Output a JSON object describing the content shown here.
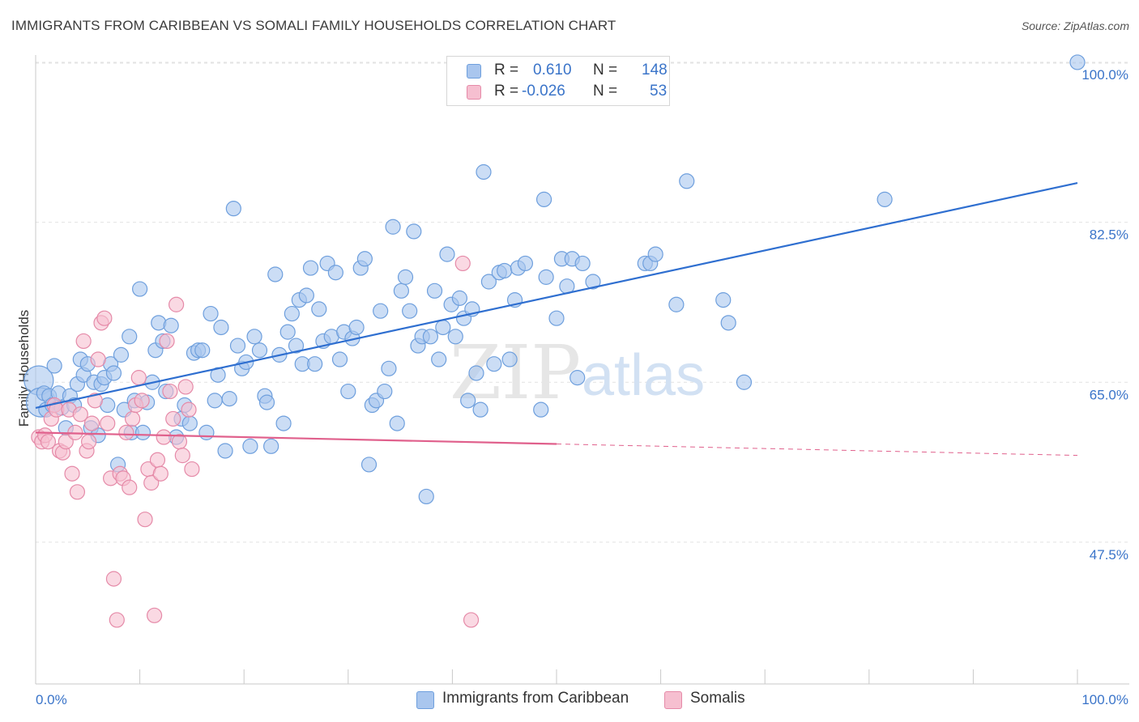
{
  "header": {
    "title": "IMMIGRANTS FROM CARIBBEAN VS SOMALI FAMILY HOUSEHOLDS CORRELATION CHART",
    "source": "Source: ZipAtlas.com"
  },
  "legend": {
    "rows": [
      {
        "r_label": "R =",
        "r_value": "0.610",
        "n_label": "N =",
        "n_value": "148"
      },
      {
        "r_label": "R =",
        "r_value": "-0.026",
        "n_label": "N =",
        "n_value": "53"
      }
    ]
  },
  "watermark": {
    "zip": "ZIP",
    "atlas": "atlas"
  },
  "colors": {
    "blue_fill": "#a9c6ee",
    "blue_stroke": "#6e9fdd",
    "blue_line": "#2f6fd0",
    "pink_fill": "#f6bfd0",
    "pink_stroke": "#e58aa8",
    "pink_line": "#e0608c",
    "tick_label": "#3a74c9",
    "grid": "#e2e2e2"
  },
  "chart_data": {
    "type": "scatter",
    "title": "IMMIGRANTS FROM CARIBBEAN VS SOMALI FAMILY HOUSEHOLDS CORRELATION CHART",
    "xlabel": "",
    "ylabel": "Family Households",
    "xlim": [
      0,
      100
    ],
    "ylim": [
      32,
      101.5
    ],
    "x_tick_labels": [
      "0.0%",
      "100.0%"
    ],
    "y_ticks": [
      47.5,
      65.0,
      82.5,
      100.0
    ],
    "y_tick_labels": [
      "47.5%",
      "65.0%",
      "82.5%",
      "100.0%"
    ],
    "grid": true,
    "legend_position": "top-center",
    "series": [
      {
        "name": "Immigrants from Caribbean",
        "r": 0.61,
        "n": 148,
        "trend": {
          "x0": 0,
          "y0": 62.2,
          "x1": 100,
          "y1": 86.8,
          "dashed_from": null
        },
        "points": [
          [
            0.3,
            65.2
          ],
          [
            0.5,
            62.8
          ],
          [
            0.8,
            63.8
          ],
          [
            1.0,
            62.0
          ],
          [
            1.3,
            63.5
          ],
          [
            1.6,
            62.5
          ],
          [
            1.8,
            66.8
          ],
          [
            2.2,
            63.8
          ],
          [
            2.5,
            62.2
          ],
          [
            2.9,
            60.0
          ],
          [
            3.3,
            63.5
          ],
          [
            3.7,
            62.5
          ],
          [
            4.0,
            64.8
          ],
          [
            4.3,
            67.5
          ],
          [
            4.6,
            65.8
          ],
          [
            5.0,
            67.0
          ],
          [
            5.3,
            60.0
          ],
          [
            5.6,
            65.0
          ],
          [
            6.0,
            59.2
          ],
          [
            6.3,
            64.8
          ],
          [
            6.6,
            65.5
          ],
          [
            6.9,
            62.5
          ],
          [
            7.2,
            67.0
          ],
          [
            7.5,
            66.0
          ],
          [
            7.9,
            56.0
          ],
          [
            8.2,
            68.0
          ],
          [
            8.5,
            62.0
          ],
          [
            9.0,
            70.0
          ],
          [
            9.2,
            59.5
          ],
          [
            9.5,
            63.0
          ],
          [
            10.0,
            75.2
          ],
          [
            10.3,
            59.5
          ],
          [
            10.7,
            62.8
          ],
          [
            11.2,
            65.0
          ],
          [
            11.5,
            68.5
          ],
          [
            11.8,
            71.5
          ],
          [
            12.2,
            69.5
          ],
          [
            12.5,
            64.0
          ],
          [
            13.0,
            71.2
          ],
          [
            13.5,
            59.0
          ],
          [
            14.0,
            61.0
          ],
          [
            14.3,
            62.5
          ],
          [
            14.8,
            60.5
          ],
          [
            15.2,
            68.2
          ],
          [
            15.6,
            68.5
          ],
          [
            16.0,
            68.5
          ],
          [
            16.4,
            59.5
          ],
          [
            16.8,
            72.5
          ],
          [
            17.2,
            63.0
          ],
          [
            17.5,
            65.8
          ],
          [
            17.8,
            71.0
          ],
          [
            18.2,
            57.5
          ],
          [
            18.6,
            63.2
          ],
          [
            19.0,
            84.0
          ],
          [
            19.4,
            69.0
          ],
          [
            19.8,
            66.5
          ],
          [
            20.2,
            67.2
          ],
          [
            20.6,
            58.0
          ],
          [
            21.0,
            70.0
          ],
          [
            21.5,
            68.5
          ],
          [
            22.0,
            63.5
          ],
          [
            22.2,
            62.8
          ],
          [
            22.6,
            58.0
          ],
          [
            23.0,
            76.8
          ],
          [
            23.4,
            68.0
          ],
          [
            23.8,
            60.5
          ],
          [
            24.2,
            70.5
          ],
          [
            24.6,
            72.5
          ],
          [
            25.0,
            69.0
          ],
          [
            25.3,
            74.0
          ],
          [
            25.6,
            67.0
          ],
          [
            26.0,
            74.5
          ],
          [
            26.4,
            77.5
          ],
          [
            26.8,
            67.0
          ],
          [
            27.2,
            73.0
          ],
          [
            27.6,
            69.5
          ],
          [
            28.0,
            78.0
          ],
          [
            28.4,
            70.0
          ],
          [
            28.8,
            77.0
          ],
          [
            29.2,
            67.5
          ],
          [
            29.6,
            70.5
          ],
          [
            30.0,
            64.0
          ],
          [
            30.4,
            69.8
          ],
          [
            30.8,
            71.0
          ],
          [
            31.2,
            77.5
          ],
          [
            31.6,
            78.5
          ],
          [
            32.0,
            56.0
          ],
          [
            32.3,
            62.5
          ],
          [
            32.7,
            63.0
          ],
          [
            33.1,
            72.8
          ],
          [
            33.5,
            64.0
          ],
          [
            33.9,
            66.5
          ],
          [
            34.3,
            82.0
          ],
          [
            34.7,
            60.5
          ],
          [
            35.1,
            75.0
          ],
          [
            35.5,
            76.5
          ],
          [
            35.9,
            72.8
          ],
          [
            36.3,
            81.5
          ],
          [
            36.7,
            69.0
          ],
          [
            37.1,
            70.0
          ],
          [
            37.5,
            52.5
          ],
          [
            37.9,
            70.0
          ],
          [
            38.3,
            75.0
          ],
          [
            38.7,
            67.5
          ],
          [
            39.1,
            71.0
          ],
          [
            39.5,
            79.0
          ],
          [
            39.9,
            73.5
          ],
          [
            40.3,
            70.0
          ],
          [
            40.7,
            74.2
          ],
          [
            41.1,
            72.0
          ],
          [
            41.5,
            63.0
          ],
          [
            41.9,
            73.0
          ],
          [
            42.3,
            66.0
          ],
          [
            42.7,
            62.0
          ],
          [
            43.0,
            88.0
          ],
          [
            43.5,
            76.0
          ],
          [
            44.0,
            67.0
          ],
          [
            44.5,
            77.0
          ],
          [
            45.0,
            77.2
          ],
          [
            45.5,
            67.5
          ],
          [
            46.0,
            74.0
          ],
          [
            46.3,
            77.5
          ],
          [
            47.0,
            78.0
          ],
          [
            48.5,
            62.0
          ],
          [
            48.8,
            85.0
          ],
          [
            49.0,
            76.5
          ],
          [
            50.0,
            72.0
          ],
          [
            50.5,
            78.5
          ],
          [
            51.0,
            75.5
          ],
          [
            51.5,
            78.5
          ],
          [
            52.0,
            65.5
          ],
          [
            52.5,
            78.0
          ],
          [
            53.5,
            76.0
          ],
          [
            58.5,
            78.0
          ],
          [
            59.0,
            78.0
          ],
          [
            59.5,
            79.0
          ],
          [
            61.5,
            73.5
          ],
          [
            62.5,
            87.0
          ],
          [
            66.0,
            74.0
          ],
          [
            66.5,
            71.5
          ],
          [
            68.0,
            65.0
          ],
          [
            81.5,
            85.0
          ],
          [
            100.0,
            100.0
          ]
        ]
      },
      {
        "name": "Somalis",
        "r": -0.026,
        "n": 53,
        "trend": {
          "x0": 0,
          "y0": 59.5,
          "x1": 100,
          "y1": 57.0,
          "dashed_from": 50
        },
        "points": [
          [
            0.3,
            59.0
          ],
          [
            0.6,
            58.5
          ],
          [
            0.9,
            59.2
          ],
          [
            1.2,
            58.5
          ],
          [
            1.5,
            61.0
          ],
          [
            1.8,
            62.5
          ],
          [
            2.0,
            62.0
          ],
          [
            2.3,
            57.5
          ],
          [
            2.6,
            57.3
          ],
          [
            2.9,
            58.5
          ],
          [
            3.2,
            62.0
          ],
          [
            3.5,
            55.0
          ],
          [
            3.8,
            59.5
          ],
          [
            4.0,
            53.0
          ],
          [
            4.3,
            61.5
          ],
          [
            4.6,
            69.5
          ],
          [
            4.9,
            57.5
          ],
          [
            5.1,
            58.5
          ],
          [
            5.4,
            60.5
          ],
          [
            5.7,
            63.0
          ],
          [
            6.0,
            67.5
          ],
          [
            6.3,
            71.5
          ],
          [
            6.6,
            72.0
          ],
          [
            6.9,
            60.5
          ],
          [
            7.2,
            54.5
          ],
          [
            7.5,
            43.5
          ],
          [
            7.8,
            39.0
          ],
          [
            8.1,
            55.0
          ],
          [
            8.4,
            54.5
          ],
          [
            8.7,
            59.5
          ],
          [
            9.0,
            53.5
          ],
          [
            9.3,
            61.0
          ],
          [
            9.6,
            62.5
          ],
          [
            9.9,
            65.5
          ],
          [
            10.2,
            63.0
          ],
          [
            10.5,
            50.0
          ],
          [
            10.8,
            55.5
          ],
          [
            11.1,
            54.0
          ],
          [
            11.4,
            39.5
          ],
          [
            11.7,
            56.5
          ],
          [
            12.0,
            55.0
          ],
          [
            12.3,
            59.0
          ],
          [
            12.6,
            69.5
          ],
          [
            12.9,
            64.0
          ],
          [
            13.2,
            61.0
          ],
          [
            13.5,
            73.5
          ],
          [
            13.8,
            58.5
          ],
          [
            14.1,
            57.0
          ],
          [
            14.4,
            64.5
          ],
          [
            14.7,
            62.0
          ],
          [
            15.0,
            55.5
          ],
          [
            41.0,
            78.0
          ],
          [
            41.8,
            39.0
          ]
        ]
      }
    ]
  },
  "bottom_legend": {
    "items": [
      {
        "label": "Immigrants from Caribbean"
      },
      {
        "label": "Somalis"
      }
    ]
  }
}
